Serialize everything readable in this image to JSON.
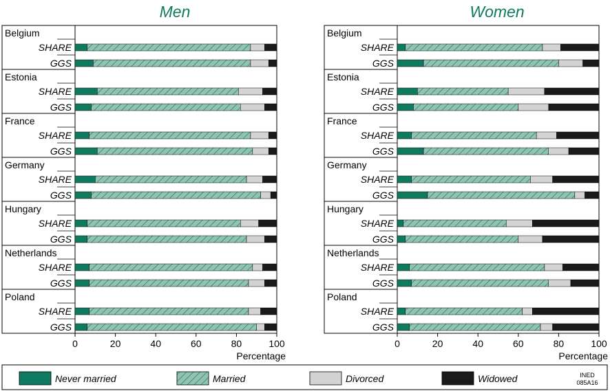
{
  "colors": {
    "never_married": "#0f7a60",
    "married_fill": "#8fc4b3",
    "married_hatch": "#2e6b5a",
    "divorced": "#d3d3d3",
    "widowed": "#1a1a1a",
    "panel_title": "#0f7a60"
  },
  "chart_data": [
    {
      "type": "bar",
      "orientation": "horizontal",
      "stacked": true,
      "title": "Men",
      "xlabel": "Percentage",
      "xlim": [
        0,
        100
      ],
      "xticks": [
        "0",
        "20",
        "40",
        "60",
        "80",
        "100"
      ],
      "countries": [
        "Belgium",
        "Estonia",
        "France",
        "Germany",
        "Hungary",
        "Netherlands",
        "Poland"
      ],
      "surveys": [
        "SHARE",
        "GGS"
      ],
      "series_names": [
        "Never married",
        "Married",
        "Divorced",
        "Widowed"
      ],
      "rows": [
        {
          "country": "Belgium",
          "survey": "SHARE",
          "values": [
            6,
            81,
            7,
            6
          ]
        },
        {
          "country": "Belgium",
          "survey": "GGS",
          "values": [
            9,
            78,
            9,
            4
          ]
        },
        {
          "country": "Estonia",
          "survey": "SHARE",
          "values": [
            11,
            70,
            12,
            7
          ]
        },
        {
          "country": "Estonia",
          "survey": "GGS",
          "values": [
            8,
            74,
            12,
            6
          ]
        },
        {
          "country": "France",
          "survey": "SHARE",
          "values": [
            7,
            80,
            9,
            4
          ]
        },
        {
          "country": "France",
          "survey": "GGS",
          "values": [
            11,
            77,
            8,
            4
          ]
        },
        {
          "country": "Germany",
          "survey": "SHARE",
          "values": [
            10,
            75,
            8,
            7
          ]
        },
        {
          "country": "Germany",
          "survey": "GGS",
          "values": [
            8,
            84,
            5,
            3
          ]
        },
        {
          "country": "Hungary",
          "survey": "SHARE",
          "values": [
            6,
            76,
            9,
            9
          ]
        },
        {
          "country": "Hungary",
          "survey": "GGS",
          "values": [
            6,
            79,
            9,
            6
          ]
        },
        {
          "country": "Netherlands",
          "survey": "SHARE",
          "values": [
            7,
            81,
            5,
            7
          ]
        },
        {
          "country": "Netherlands",
          "survey": "GGS",
          "values": [
            7,
            79,
            8,
            6
          ]
        },
        {
          "country": "Poland",
          "survey": "SHARE",
          "values": [
            7,
            79,
            6,
            8
          ]
        },
        {
          "country": "Poland",
          "survey": "GGS",
          "values": [
            6,
            84,
            4,
            6
          ]
        }
      ]
    },
    {
      "type": "bar",
      "orientation": "horizontal",
      "stacked": true,
      "title": "Women",
      "xlabel": "Percentage",
      "xlim": [
        0,
        100
      ],
      "xticks": [
        "0",
        "20",
        "40",
        "60",
        "80",
        "100"
      ],
      "countries": [
        "Belgium",
        "Estonia",
        "France",
        "Germany",
        "Hungary",
        "Netherlands",
        "Poland"
      ],
      "surveys": [
        "SHARE",
        "GGS"
      ],
      "series_names": [
        "Never married",
        "Married",
        "Divorced",
        "Widowed"
      ],
      "rows": [
        {
          "country": "Belgium",
          "survey": "SHARE",
          "values": [
            4,
            68,
            9,
            19
          ]
        },
        {
          "country": "Belgium",
          "survey": "GGS",
          "values": [
            13,
            67,
            12,
            8
          ]
        },
        {
          "country": "Estonia",
          "survey": "SHARE",
          "values": [
            10,
            45,
            18,
            27
          ]
        },
        {
          "country": "Estonia",
          "survey": "GGS",
          "values": [
            8,
            52,
            15,
            25
          ]
        },
        {
          "country": "France",
          "survey": "SHARE",
          "values": [
            7,
            62,
            10,
            21
          ]
        },
        {
          "country": "France",
          "survey": "GGS",
          "values": [
            13,
            62,
            10,
            15
          ]
        },
        {
          "country": "Germany",
          "survey": "SHARE",
          "values": [
            7,
            59,
            11,
            23
          ]
        },
        {
          "country": "Germany",
          "survey": "GGS",
          "values": [
            15,
            73,
            5,
            7
          ]
        },
        {
          "country": "Hungary",
          "survey": "SHARE",
          "values": [
            3,
            51,
            13,
            33
          ]
        },
        {
          "country": "Hungary",
          "survey": "GGS",
          "values": [
            4,
            56,
            12,
            28
          ]
        },
        {
          "country": "Netherlands",
          "survey": "SHARE",
          "values": [
            6,
            67,
            9,
            18
          ]
        },
        {
          "country": "Netherlands",
          "survey": "GGS",
          "values": [
            7,
            68,
            11,
            14
          ]
        },
        {
          "country": "Poland",
          "survey": "SHARE",
          "values": [
            4,
            58,
            5,
            33
          ]
        },
        {
          "country": "Poland",
          "survey": "GGS",
          "values": [
            6,
            65,
            6,
            23
          ]
        }
      ]
    }
  ],
  "legend": {
    "placement": "bottom",
    "items": [
      {
        "label": "Never married",
        "key": "never_married"
      },
      {
        "label": "Married",
        "key": "married"
      },
      {
        "label": "Divorced",
        "key": "divorced"
      },
      {
        "label": "Widowed",
        "key": "widowed"
      }
    ],
    "credit_line1": "INED",
    "credit_line2": "085A16"
  }
}
